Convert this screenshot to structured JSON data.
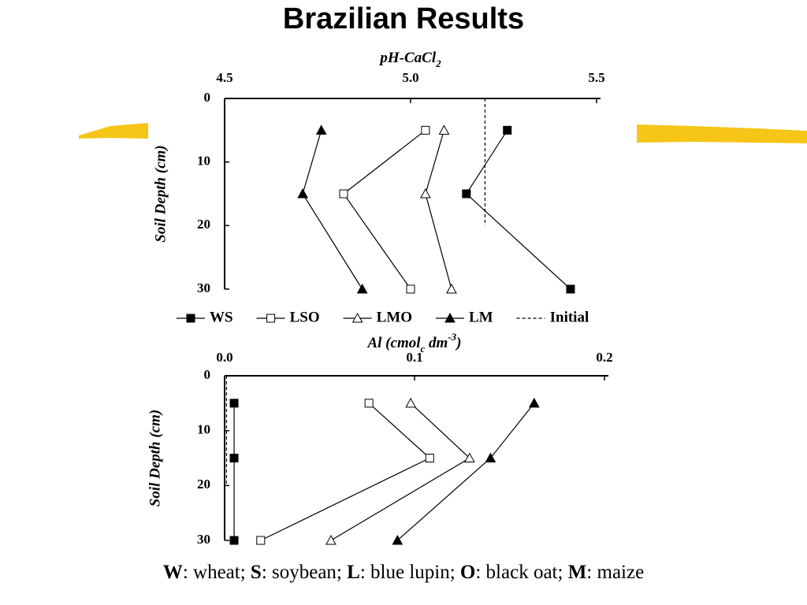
{
  "title": "Brazilian Results",
  "chart_data": [
    {
      "type": "line",
      "orientation": "vertical",
      "y_inverted": true,
      "x_label": [
        {
          "text": "pH-CaCl"
        },
        {
          "text": "2",
          "sub": true
        }
      ],
      "y_label": "Soil Depth (cm)",
      "xlim": [
        4.5,
        5.5
      ],
      "xticks": [
        4.5,
        {
          "value": 5,
          "label": "5.0"
        },
        5.5
      ],
      "ylim": [
        0,
        30
      ],
      "yticks": [
        0,
        10,
        20,
        30
      ],
      "legend": true,
      "series": [
        {
          "name": "WS",
          "marker": "square-filled",
          "color": "#000000",
          "values": [
            5.26,
            5.15,
            5.43
          ],
          "depths": [
            5,
            15,
            30
          ]
        },
        {
          "name": "LSO",
          "marker": "square-open",
          "color": "#000000",
          "values": [
            5.04,
            4.82,
            5.0
          ],
          "depths": [
            5,
            15,
            30
          ]
        },
        {
          "name": "LMO",
          "marker": "triangle-open",
          "color": "#000000",
          "values": [
            5.09,
            5.04,
            5.11
          ],
          "depths": [
            5,
            15,
            30
          ]
        },
        {
          "name": "LM",
          "marker": "triangle-filled",
          "color": "#000000",
          "values": [
            4.76,
            4.71,
            4.87
          ],
          "depths": [
            5,
            15,
            30
          ]
        },
        {
          "name": "Initial",
          "marker": "dashed",
          "color": "#000000",
          "values": [
            5.2,
            5.2
          ],
          "depths": [
            0,
            20
          ]
        }
      ]
    },
    {
      "type": "line",
      "orientation": "vertical",
      "y_inverted": true,
      "x_label": [
        {
          "text": "Al (cmol"
        },
        {
          "text": "c",
          "sub": true
        },
        {
          "text": " dm"
        },
        {
          "text": "-3",
          "sup": true
        },
        {
          "text": ")"
        }
      ],
      "y_label": "Soil Depth (cm)",
      "xlim": [
        0,
        0.2
      ],
      "xticks": [
        {
          "value": 0,
          "label": "0.0"
        },
        0.1,
        0.2
      ],
      "ylim": [
        0,
        30
      ],
      "yticks": [
        0,
        10,
        20,
        30
      ],
      "legend": false,
      "series": [
        {
          "marker": "square-filled",
          "color": "#000000",
          "values": [
            0.005,
            0.005,
            0.005
          ],
          "depths": [
            5,
            15,
            30
          ]
        },
        {
          "marker": "square-open",
          "color": "#000000",
          "values": [
            0.076,
            0.108,
            0.019
          ],
          "depths": [
            5,
            15,
            30
          ]
        },
        {
          "marker": "triangle-open",
          "color": "#000000",
          "values": [
            0.098,
            0.129,
            0.056
          ],
          "depths": [
            5,
            15,
            30
          ]
        },
        {
          "marker": "triangle-filled",
          "color": "#000000",
          "values": [
            0.163,
            0.14,
            0.091
          ],
          "depths": [
            5,
            15,
            30
          ]
        },
        {
          "marker": "dashed",
          "color": "#000000",
          "values": [
            0.001,
            0.001
          ],
          "depths": [
            0,
            20
          ]
        }
      ]
    }
  ],
  "caption": [
    {
      "text": "W",
      "bold": true
    },
    {
      "text": ": wheat; "
    },
    {
      "text": "S",
      "bold": true
    },
    {
      "text": ": soybean; "
    },
    {
      "text": "L",
      "bold": true
    },
    {
      "text": ": blue lupin; "
    },
    {
      "text": "O",
      "bold": true
    },
    {
      "text": ": black oat; "
    },
    {
      "text": "M",
      "bold": true
    },
    {
      "text": ": maize"
    }
  ]
}
